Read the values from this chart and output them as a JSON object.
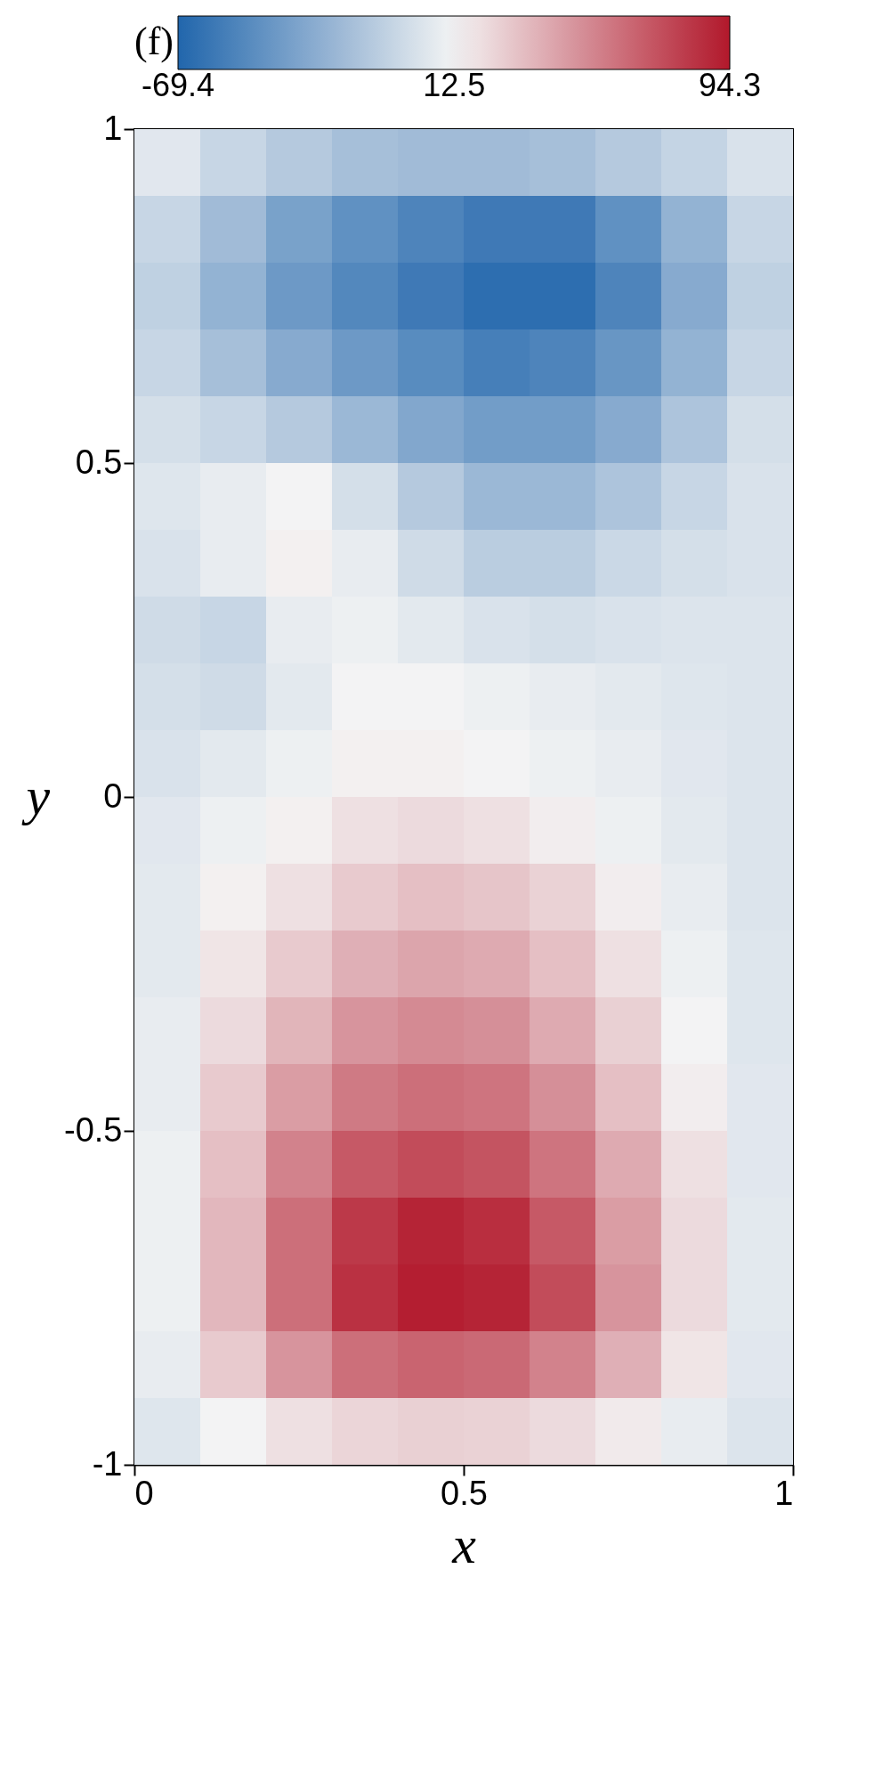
{
  "chart_data": {
    "type": "heatmap",
    "title": "(f)",
    "xlabel": "x",
    "ylabel": "y",
    "xlim": [
      0,
      1
    ],
    "ylim": [
      -1,
      1
    ],
    "xticks": [
      0,
      0.5,
      1
    ],
    "yticks": [
      -1,
      -0.5,
      0,
      0.5,
      1
    ],
    "clim": [
      -69.4,
      94.3
    ],
    "cticks": [
      -69.4,
      12.5,
      94.3
    ],
    "grid": false,
    "cells": [
      [
        5,
        -5,
        -12,
        -18,
        -20,
        -20,
        -18,
        -12,
        -6,
        2
      ],
      [
        -5,
        -20,
        -35,
        -45,
        -52,
        -58,
        -58,
        -45,
        -25,
        -5
      ],
      [
        -8,
        -25,
        -40,
        -50,
        -58,
        -65,
        -65,
        -52,
        -30,
        -8
      ],
      [
        -5,
        -18,
        -30,
        -40,
        -48,
        -55,
        -52,
        -42,
        -25,
        -5
      ],
      [
        0,
        -5,
        -12,
        -22,
        -32,
        -38,
        -38,
        -30,
        -15,
        0
      ],
      [
        4,
        8,
        12,
        0,
        -12,
        -22,
        -22,
        -15,
        -5,
        2
      ],
      [
        2,
        8,
        14,
        8,
        -2,
        -10,
        -10,
        -4,
        0,
        2
      ],
      [
        -2,
        -5,
        8,
        10,
        6,
        2,
        0,
        2,
        3,
        3
      ],
      [
        0,
        -2,
        6,
        12,
        12,
        10,
        8,
        6,
        4,
        3
      ],
      [
        2,
        6,
        10,
        14,
        14,
        12,
        10,
        8,
        5,
        3
      ],
      [
        5,
        10,
        14,
        20,
        22,
        20,
        15,
        10,
        6,
        3
      ],
      [
        6,
        14,
        20,
        28,
        32,
        30,
        25,
        15,
        8,
        3
      ],
      [
        6,
        18,
        28,
        38,
        42,
        40,
        32,
        20,
        10,
        4
      ],
      [
        8,
        22,
        36,
        48,
        52,
        50,
        40,
        26,
        12,
        4
      ],
      [
        8,
        28,
        45,
        58,
        62,
        60,
        50,
        32,
        15,
        5
      ],
      [
        10,
        32,
        55,
        70,
        75,
        72,
        60,
        40,
        20,
        5
      ],
      [
        10,
        35,
        62,
        82,
        90,
        86,
        70,
        45,
        22,
        6
      ],
      [
        10,
        35,
        62,
        85,
        92,
        90,
        75,
        48,
        22,
        6
      ],
      [
        8,
        28,
        48,
        62,
        66,
        64,
        55,
        38,
        18,
        5
      ],
      [
        4,
        12,
        20,
        24,
        26,
        25,
        22,
        16,
        8,
        3
      ]
    ]
  }
}
